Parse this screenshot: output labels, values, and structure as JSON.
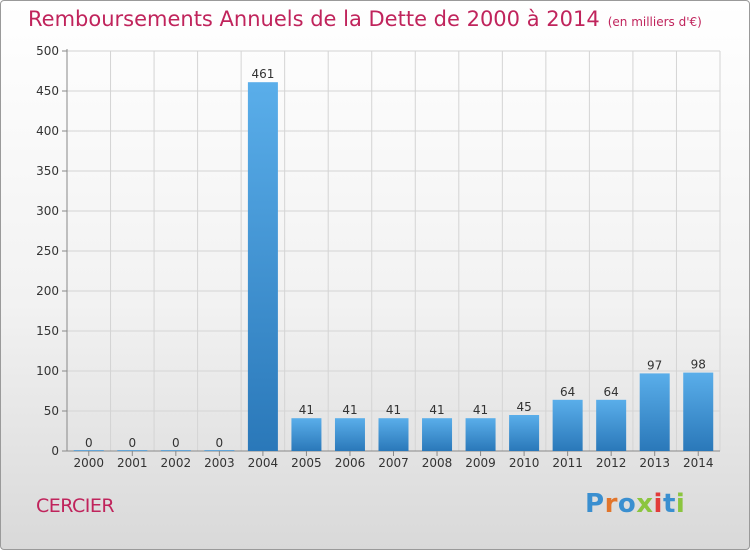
{
  "title": "Remboursements Annuels de la Dette de 2000 à 2014",
  "unit_note": "(en milliers d'€)",
  "commune": "CERCIER",
  "logo": {
    "text": "Proxiti",
    "colors": [
      "#3a8fd0",
      "#e2752b",
      "#3a8fd0",
      "#8bc53f",
      "#e23b3b",
      "#3a8fd0",
      "#8bc53f"
    ]
  },
  "chart_data": {
    "type": "bar",
    "categories": [
      "2000",
      "2001",
      "2002",
      "2003",
      "2004",
      "2005",
      "2006",
      "2007",
      "2008",
      "2009",
      "2010",
      "2011",
      "2012",
      "2013",
      "2014"
    ],
    "values": [
      0,
      0,
      0,
      0,
      461,
      41,
      41,
      41,
      41,
      41,
      45,
      64,
      64,
      97,
      98
    ],
    "ylim": [
      0,
      500
    ],
    "yticks": [
      0,
      50,
      100,
      150,
      200,
      250,
      300,
      350,
      400,
      450,
      500
    ],
    "grid": true,
    "bar_color_top": "#5aaeea",
    "bar_color_bottom": "#2a78b9",
    "title_color": "#c0245c"
  }
}
